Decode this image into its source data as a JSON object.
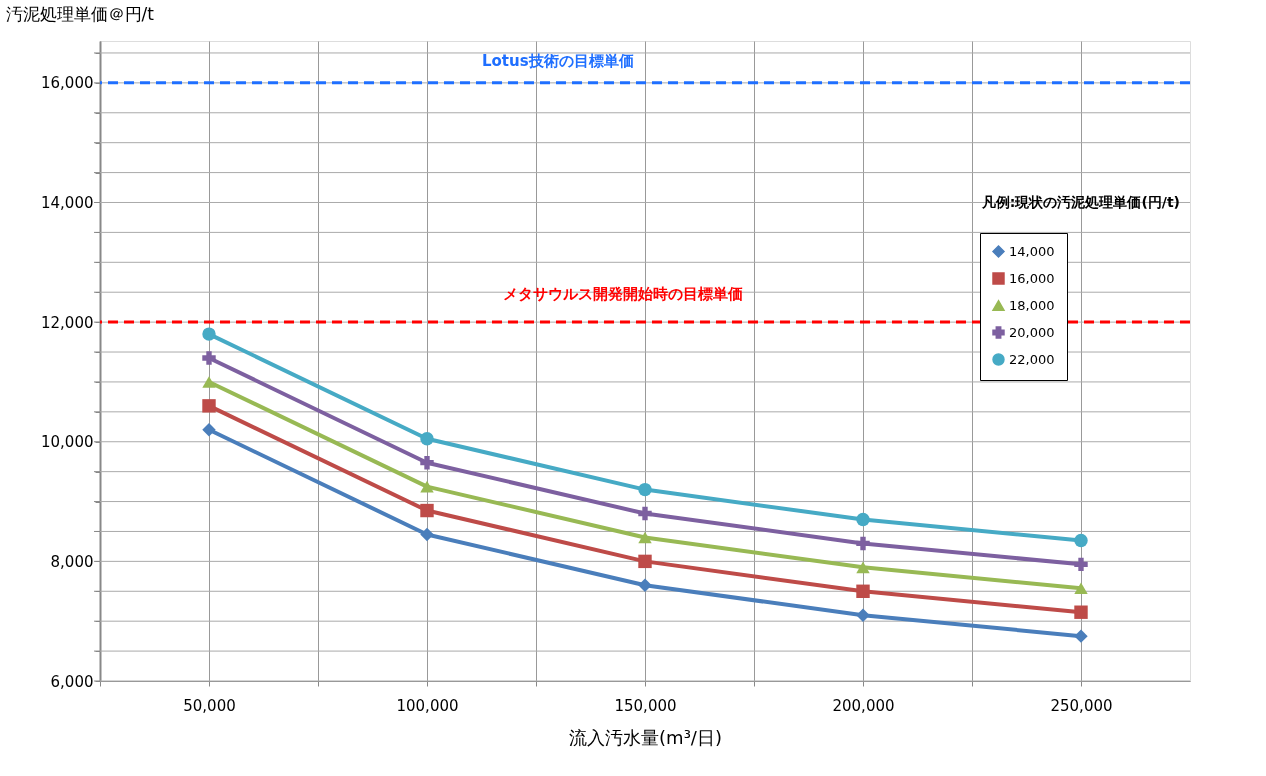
{
  "chart_data": {
    "type": "line",
    "xlabel": "流入汚水量(m³/日)",
    "ylabel": "汚泥処理単価＠円/t",
    "legend_title": "凡例:現状の汚泥処理単価(円/t)",
    "x": [
      50000,
      100000,
      150000,
      200000,
      250000
    ],
    "series": [
      {
        "name": "14,000",
        "color": "#4a7ebb",
        "marker": "diamond",
        "values": [
          10200,
          8450,
          7600,
          7100,
          6750
        ]
      },
      {
        "name": "16,000",
        "color": "#be4b48",
        "marker": "square",
        "values": [
          10600,
          8850,
          8000,
          7500,
          7150
        ]
      },
      {
        "name": "18,000",
        "color": "#98b954",
        "marker": "triangle",
        "values": [
          11000,
          9250,
          8400,
          7900,
          7550
        ]
      },
      {
        "name": "20,000",
        "color": "#7d60a0",
        "marker": "cross",
        "values": [
          11400,
          9650,
          8800,
          8300,
          7950
        ]
      },
      {
        "name": "22,000",
        "color": "#46aac5",
        "marker": "circle",
        "values": [
          11800,
          10050,
          9200,
          8700,
          8350
        ]
      }
    ],
    "xlim": [
      25000,
      275000
    ],
    "xticks": [
      {
        "value": 25000,
        "label": null
      },
      {
        "value": 50000,
        "label": "50,000"
      },
      {
        "value": 75000,
        "label": null
      },
      {
        "value": 100000,
        "label": "100,000"
      },
      {
        "value": 125000,
        "label": null
      },
      {
        "value": 150000,
        "label": "150,000"
      },
      {
        "value": 175000,
        "label": null
      },
      {
        "value": 200000,
        "label": "200,000"
      },
      {
        "value": 225000,
        "label": null
      },
      {
        "value": 250000,
        "label": "250,000"
      }
    ],
    "ylim": [
      6000,
      16700
    ],
    "yticks": [
      {
        "value": 6000,
        "label": "6,000"
      },
      {
        "value": 6500,
        "label": null
      },
      {
        "value": 7000,
        "label": null
      },
      {
        "value": 7500,
        "label": null
      },
      {
        "value": 8000,
        "label": "8,000"
      },
      {
        "value": 8500,
        "label": null
      },
      {
        "value": 9000,
        "label": null
      },
      {
        "value": 9500,
        "label": null
      },
      {
        "value": 10000,
        "label": "10,000"
      },
      {
        "value": 10500,
        "label": null
      },
      {
        "value": 11000,
        "label": null
      },
      {
        "value": 11500,
        "label": null
      },
      {
        "value": 12000,
        "label": "12,000"
      },
      {
        "value": 12500,
        "label": null
      },
      {
        "value": 13000,
        "label": null
      },
      {
        "value": 13500,
        "label": null
      },
      {
        "value": 14000,
        "label": "14,000"
      },
      {
        "value": 14500,
        "label": null
      },
      {
        "value": 15000,
        "label": null
      },
      {
        "value": 15500,
        "label": null
      },
      {
        "value": 16000,
        "label": "16,000"
      },
      {
        "value": 16500,
        "label": null
      }
    ],
    "ref_lines": [
      {
        "axis": "y",
        "value": 16000,
        "label": "Lotus技術の目標単価",
        "color": "#1f6fff",
        "line_style": "dashed"
      },
      {
        "axis": "y",
        "value": 12000,
        "label": "メタサウルス開発開始時の目標単価",
        "color": "#ff0000",
        "line_style": "dashed"
      }
    ],
    "grid": true,
    "legend": "right",
    "line_style": "solid"
  }
}
